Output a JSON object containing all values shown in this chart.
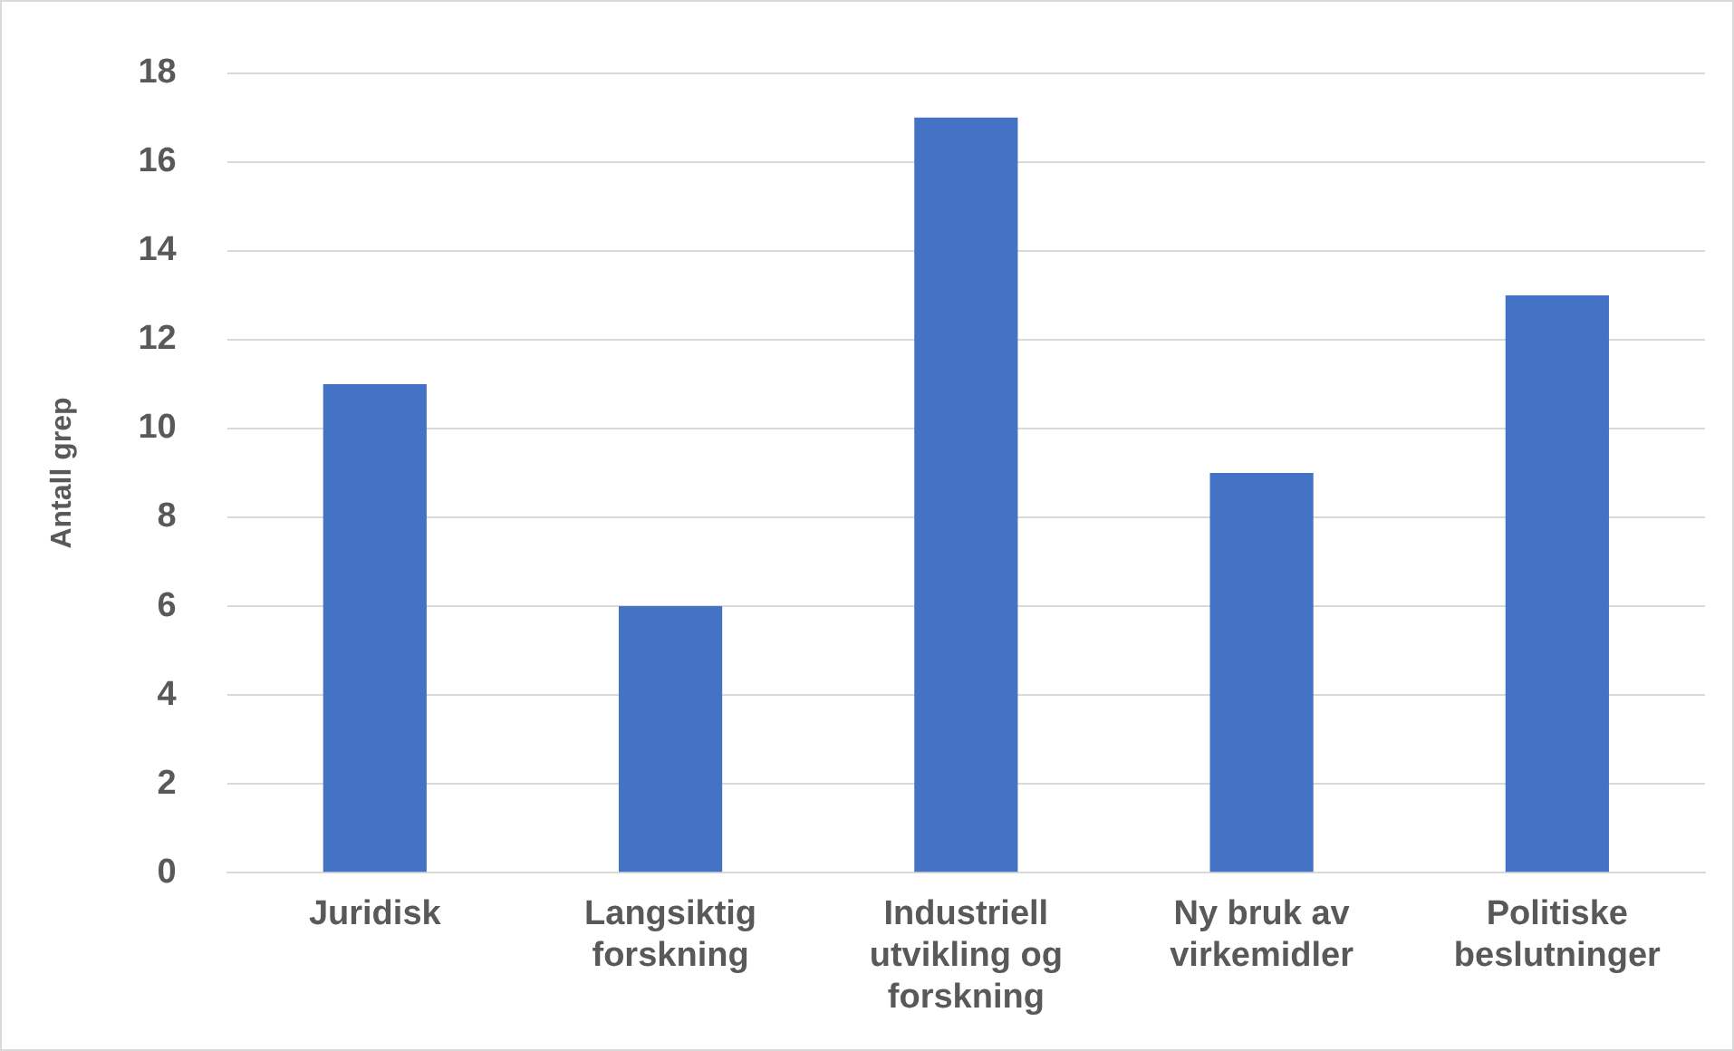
{
  "chart_data": {
    "type": "bar",
    "ylabel": "Antall grep",
    "categories": [
      "Juridisk",
      "Langsiktig forskning",
      "Industriell utvikling og forskning",
      "Ny bruk av virkemidler",
      "Politiske beslutninger"
    ],
    "values": [
      11,
      6,
      17,
      9,
      13
    ],
    "color": "#4472c4",
    "ylim": [
      0,
      18
    ],
    "yticks": [
      0,
      2,
      4,
      6,
      8,
      10,
      12,
      14,
      16,
      18
    ],
    "grid": "y",
    "legend": false
  }
}
